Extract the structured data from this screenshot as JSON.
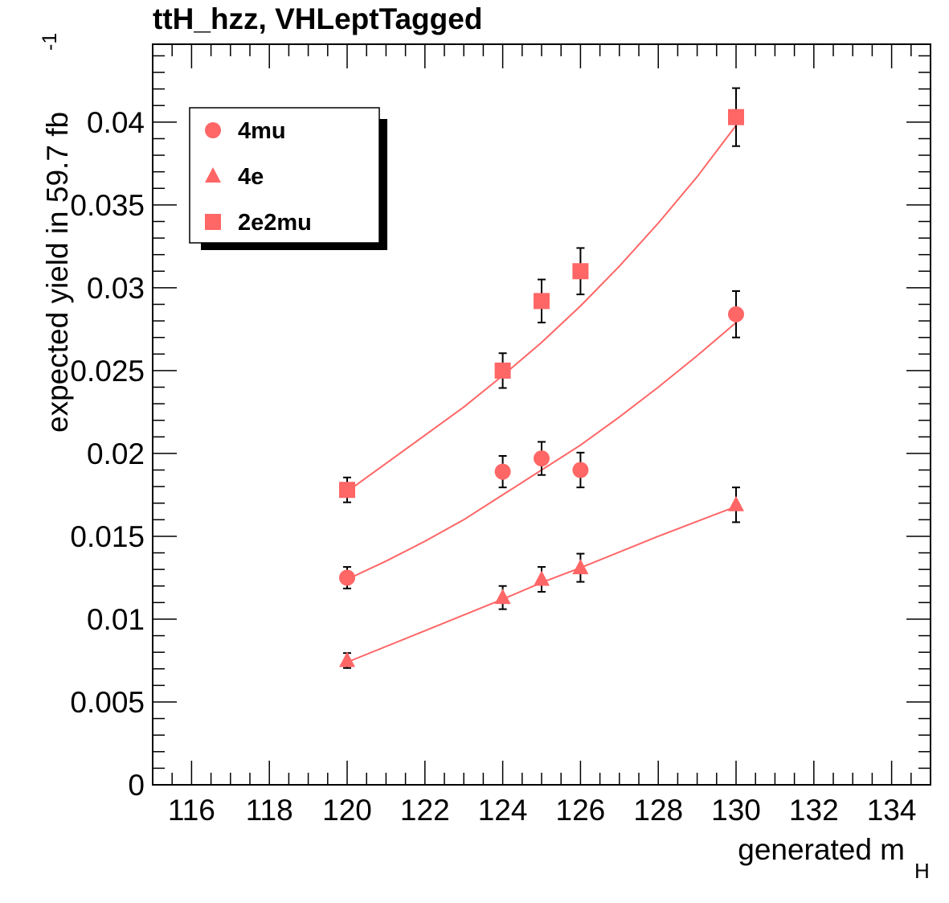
{
  "chart_data": {
    "type": "scatter",
    "title": "ttH_hzz, VHLeptTagged",
    "xlabel": "generated m",
    "xlabel_sub": "H",
    "ylabel": "expected yield in 59.7 fb",
    "ylabel_sup": "-1",
    "xlim": [
      115,
      135
    ],
    "ylim": [
      0,
      0.0447
    ],
    "x_ticks": [
      "116",
      "118",
      "120",
      "122",
      "124",
      "126",
      "128",
      "130",
      "132",
      "134"
    ],
    "y_ticks": [
      "0",
      "0.005",
      "0.01",
      "0.015",
      "0.02",
      "0.025",
      "0.03",
      "0.035",
      "0.04"
    ],
    "grid": false,
    "legend_position": "top-left",
    "marker_color": "#ff6666",
    "series": [
      {
        "name": "4mu",
        "marker": "circle",
        "points": [
          {
            "x": 120,
            "y": 0.0125,
            "err": 0.00065
          },
          {
            "x": 124,
            "y": 0.0189,
            "err": 0.00095
          },
          {
            "x": 125,
            "y": 0.0197,
            "err": 0.001
          },
          {
            "x": 126,
            "y": 0.019,
            "err": 0.00105
          },
          {
            "x": 130,
            "y": 0.0284,
            "err": 0.0014
          }
        ],
        "fit": [
          [
            120,
            0.0124
          ],
          [
            121,
            0.0135
          ],
          [
            122,
            0.0147
          ],
          [
            123,
            0.016
          ],
          [
            124,
            0.0175
          ],
          [
            125,
            0.019
          ],
          [
            126,
            0.0205
          ],
          [
            127,
            0.0222
          ],
          [
            128,
            0.024
          ],
          [
            129,
            0.0259
          ],
          [
            130,
            0.0279
          ]
        ]
      },
      {
        "name": "4e",
        "marker": "triangle",
        "points": [
          {
            "x": 120,
            "y": 0.0075,
            "err": 0.00045
          },
          {
            "x": 124,
            "y": 0.0113,
            "err": 0.0007
          },
          {
            "x": 125,
            "y": 0.0124,
            "err": 0.00075
          },
          {
            "x": 126,
            "y": 0.0131,
            "err": 0.00085
          },
          {
            "x": 130,
            "y": 0.0169,
            "err": 0.00105
          }
        ],
        "fit": [
          [
            120,
            0.0074
          ],
          [
            122,
            0.0093
          ],
          [
            124,
            0.0112
          ],
          [
            125,
            0.0122
          ],
          [
            126,
            0.0131
          ],
          [
            128,
            0.015
          ],
          [
            130,
            0.0168
          ]
        ]
      },
      {
        "name": "2e2mu",
        "marker": "square",
        "points": [
          {
            "x": 120,
            "y": 0.0178,
            "err": 0.00075
          },
          {
            "x": 124,
            "y": 0.025,
            "err": 0.00105
          },
          {
            "x": 125,
            "y": 0.0292,
            "err": 0.0013
          },
          {
            "x": 126,
            "y": 0.031,
            "err": 0.0014
          },
          {
            "x": 130,
            "y": 0.0403,
            "err": 0.00175
          }
        ],
        "fit": [
          [
            120,
            0.0177
          ],
          [
            121,
            0.0194
          ],
          [
            122,
            0.0211
          ],
          [
            123,
            0.0228
          ],
          [
            124,
            0.0247
          ],
          [
            125,
            0.0267
          ],
          [
            126,
            0.0289
          ],
          [
            127,
            0.0313
          ],
          [
            128,
            0.0339
          ],
          [
            129,
            0.0367
          ],
          [
            130,
            0.0398
          ]
        ]
      }
    ]
  }
}
